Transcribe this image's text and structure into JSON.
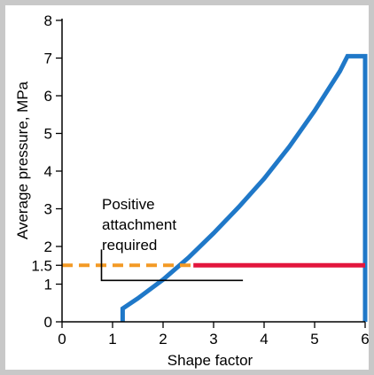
{
  "chart_data": {
    "type": "line",
    "title": "",
    "xlabel": "Shape factor",
    "ylabel": "Average pressure, MPa",
    "xlim": [
      0,
      6
    ],
    "ylim": [
      0,
      8
    ],
    "x_ticks": [
      "0",
      "1",
      "2",
      "3",
      "4",
      "5",
      "6"
    ],
    "y_ticks": [
      "0",
      "1",
      "2",
      "3",
      "4",
      "5",
      "6",
      "7",
      "8"
    ],
    "y_tick_extra": "1.5",
    "grid": false,
    "series": [
      {
        "color": "#1f78c8",
        "points": [
          [
            1.2,
            0
          ],
          [
            1.2,
            0.35
          ],
          [
            1.5,
            0.62
          ],
          [
            2.0,
            1.12
          ],
          [
            2.5,
            1.7
          ],
          [
            3.0,
            2.35
          ],
          [
            3.5,
            3.05
          ],
          [
            4.0,
            3.8
          ],
          [
            4.5,
            4.65
          ],
          [
            5.0,
            5.6
          ],
          [
            5.5,
            6.65
          ],
          [
            5.65,
            7.05
          ],
          [
            6.0,
            7.05
          ],
          [
            6.0,
            0
          ]
        ]
      },
      {
        "color": "#f39a25",
        "dashed": true,
        "points": [
          [
            0,
            1.5
          ],
          [
            2.6,
            1.5
          ]
        ]
      },
      {
        "color": "#e3163d",
        "points": [
          [
            2.6,
            1.5
          ],
          [
            6.0,
            1.5
          ]
        ]
      }
    ],
    "annotation": {
      "lines": [
        "Positive",
        "attachment",
        "required"
      ],
      "bracket": [
        [
          0.78,
          1.92
        ],
        [
          0.78,
          1.1
        ],
        [
          3.58,
          1.1
        ]
      ]
    }
  }
}
